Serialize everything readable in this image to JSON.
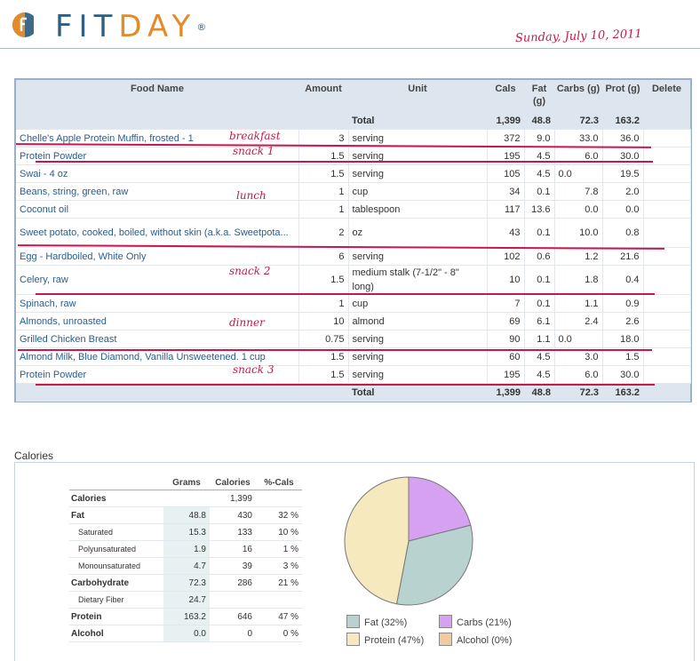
{
  "header": {
    "logo_text_a": "FIT",
    "logo_text_b": "DAY",
    "logo_reg": "®",
    "date": "Sunday, July 10, 2011"
  },
  "log": {
    "columns": [
      "Food Name",
      "Amount",
      "Unit",
      "Cals",
      "Fat (g)",
      "Carbs (g)",
      "Prot (g)",
      "Delete"
    ],
    "total_label": "Total",
    "totals": {
      "cals": "1,399",
      "fat": "48.8",
      "carbs": "72.3",
      "prot": "163.2"
    },
    "rows": [
      {
        "name": "Chelle's Apple Protein Muffin, frosted - 1",
        "amount": "3",
        "unit": "serving",
        "cals": "372",
        "fat": "9.0",
        "alc": "",
        "carbs": "33.0",
        "prot": "36.0"
      },
      {
        "name": "Protein Powder",
        "amount": "1.5",
        "unit": "serving",
        "cals": "195",
        "fat": "4.5",
        "alc": "",
        "carbs": "6.0",
        "prot": "30.0"
      },
      {
        "name": "Swai - 4 oz",
        "amount": "1.5",
        "unit": "serving",
        "cals": "105",
        "fat": "4.5",
        "alc": "0.0",
        "carbs": "",
        "prot": "19.5"
      },
      {
        "name": "Beans, string, green, raw",
        "amount": "1",
        "unit": "cup",
        "cals": "34",
        "fat": "0.1",
        "alc": "",
        "carbs": "7.8",
        "prot": "2.0"
      },
      {
        "name": "Coconut oil",
        "amount": "1",
        "unit": "tablespoon",
        "cals": "117",
        "fat": "13.6",
        "alc": "",
        "carbs": "0.0",
        "prot": "0.0"
      },
      {
        "name": "Sweet potato, cooked, boiled, without skin (a.k.a. Sweetpota...",
        "amount": "2",
        "unit": "oz",
        "cals": "43",
        "fat": "0.1",
        "alc": "",
        "carbs": "10.0",
        "prot": "0.8"
      },
      {
        "name": "Egg - Hardboiled, White Only",
        "amount": "6",
        "unit": "serving",
        "cals": "102",
        "fat": "0.6",
        "alc": "",
        "carbs": "1.2",
        "prot": "21.6"
      },
      {
        "name": "Celery, raw",
        "amount": "1.5",
        "unit": "medium stalk (7-1/2\" - 8\" long)",
        "cals": "10",
        "fat": "0.1",
        "alc": "",
        "carbs": "1.8",
        "prot": "0.4"
      },
      {
        "name": "Spinach, raw",
        "amount": "1",
        "unit": "cup",
        "cals": "7",
        "fat": "0.1",
        "alc": "",
        "carbs": "1.1",
        "prot": "0.9"
      },
      {
        "name": "Almonds, unroasted",
        "amount": "10",
        "unit": "almond",
        "cals": "69",
        "fat": "6.1",
        "alc": "",
        "carbs": "2.4",
        "prot": "2.6"
      },
      {
        "name": "Grilled Chicken Breast",
        "amount": "0.75",
        "unit": "serving",
        "cals": "90",
        "fat": "1.1",
        "alc": "0.0",
        "carbs": "",
        "prot": "18.0"
      },
      {
        "name": "Almond Milk, Blue Diamond, Vanilla Unsweetened. 1 cup",
        "amount": "1.5",
        "unit": "serving",
        "cals": "60",
        "fat": "4.5",
        "alc": "",
        "carbs": "3.0",
        "prot": "1.5"
      },
      {
        "name": "Protein Powder",
        "amount": "1.5",
        "unit": "serving",
        "cals": "195",
        "fat": "4.5",
        "alc": "",
        "carbs": "6.0",
        "prot": "30.0"
      }
    ],
    "notes": [
      "breakfast",
      "snack 1",
      "lunch",
      "snack 2",
      "dinner",
      "snack 3"
    ]
  },
  "calories": {
    "title": "Calories",
    "columns": [
      "Grams",
      "Calories",
      "%-Cals"
    ],
    "rows": [
      {
        "label": "Calories",
        "grams": "",
        "cals": "1,399",
        "pct": "",
        "sub": false
      },
      {
        "label": "Fat",
        "grams": "48.8",
        "cals": "430",
        "pct": "32 %",
        "sub": false
      },
      {
        "label": "Saturated",
        "grams": "15.3",
        "cals": "133",
        "pct": "10 %",
        "sub": true
      },
      {
        "label": "Polyunsaturated",
        "grams": "1.9",
        "cals": "16",
        "pct": "1 %",
        "sub": true
      },
      {
        "label": "Monounsaturated",
        "grams": "4.7",
        "cals": "39",
        "pct": "3 %",
        "sub": true
      },
      {
        "label": "Carbohydrate",
        "grams": "72.3",
        "cals": "286",
        "pct": "21 %",
        "sub": false
      },
      {
        "label": "Dietary Fiber",
        "grams": "24.7",
        "cals": "",
        "pct": "",
        "sub": true
      },
      {
        "label": "Protein",
        "grams": "163.2",
        "cals": "646",
        "pct": "47 %",
        "sub": false
      },
      {
        "label": "Alcohol",
        "grams": "0.0",
        "cals": "0",
        "pct": "0 %",
        "sub": false
      }
    ]
  },
  "chart_data": {
    "type": "pie",
    "categories": [
      "Fat",
      "Carbs",
      "Protein",
      "Alcohol"
    ],
    "values": [
      32,
      21,
      47,
      0
    ],
    "legend": [
      "Fat  (32%)",
      "Carbs  (21%)",
      "Protein  (47%)",
      "Alcohol  (0%)"
    ],
    "colors": [
      "#b8d2cf",
      "#d7a1f2",
      "#f6e9bd",
      "#f1caa0"
    ],
    "legend_position": "bottom"
  }
}
